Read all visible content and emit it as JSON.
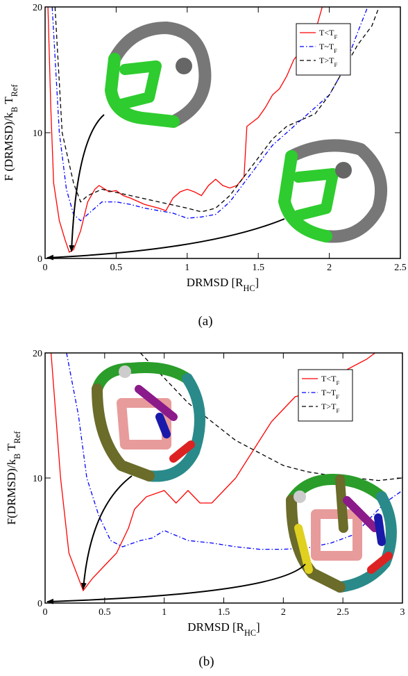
{
  "chart_data": [
    {
      "type": "line",
      "caption": "(a)",
      "xlabel": [
        {
          "text": "DRMSD [R"
        },
        {
          "text": "HC",
          "sub": true
        },
        {
          "text": "]"
        }
      ],
      "ylabel": [
        {
          "text": "F (DRMSD)/k"
        },
        {
          "text": "B",
          "sub": true
        },
        {
          "text": " T"
        },
        {
          "text": "Ref",
          "sub": true
        }
      ],
      "xlim": [
        0,
        2.5
      ],
      "xticks": [
        0,
        0.5,
        1,
        1.5,
        2,
        2.5
      ],
      "ylim": [
        0,
        20
      ],
      "yticks": [
        0,
        10,
        20
      ],
      "legend": "upper right",
      "series": [
        {
          "name": [
            {
              "text": "T<T"
            },
            {
              "text": "F",
              "sub": true
            }
          ],
          "color": "#ff0000",
          "dash": "solid",
          "x": [
            0.02,
            0.04,
            0.06,
            0.1,
            0.14,
            0.17,
            0.2,
            0.25,
            0.3,
            0.35,
            0.38,
            0.45,
            0.5,
            0.55,
            0.6,
            0.7,
            0.8,
            0.85,
            0.9,
            0.95,
            1.0,
            1.05,
            1.1,
            1.15,
            1.2,
            1.25,
            1.3,
            1.35,
            1.4,
            1.42,
            1.5,
            1.55,
            1.6,
            1.65,
            1.7,
            1.75,
            1.8,
            1.85,
            1.9,
            1.95
          ],
          "values": [
            20,
            12,
            6,
            3,
            1.5,
            0.5,
            0.7,
            2.2,
            4.5,
            5.5,
            5.8,
            5.3,
            5.4,
            5,
            4.8,
            4.3,
            4,
            3.8,
            4.8,
            5.3,
            5.5,
            5.3,
            5,
            5.8,
            6.3,
            5.8,
            5.6,
            5.8,
            6.5,
            10.5,
            11.2,
            12,
            13,
            13.5,
            14.5,
            15.8,
            16.5,
            17.2,
            18,
            20
          ]
        },
        {
          "name": [
            {
              "text": "T~T"
            },
            {
              "text": "F",
              "sub": true
            }
          ],
          "color": "#0000ff",
          "dash": "dashdot",
          "x": [
            0.05,
            0.08,
            0.1,
            0.15,
            0.2,
            0.25,
            0.3,
            0.4,
            0.5,
            0.6,
            0.7,
            0.8,
            0.9,
            1.0,
            1.1,
            1.2,
            1.3,
            1.4,
            1.5,
            1.6,
            1.7,
            1.8,
            1.9,
            2.0,
            2.1,
            2.2,
            2.27
          ],
          "values": [
            20,
            14,
            10,
            5.5,
            3.5,
            3,
            3.5,
            4.5,
            4.5,
            4.3,
            4,
            3.8,
            3.6,
            3.2,
            3.3,
            3.5,
            4.5,
            6,
            7.5,
            9,
            10,
            11,
            12,
            13,
            15,
            18,
            20
          ]
        },
        {
          "name": [
            {
              "text": "T>T"
            },
            {
              "text": "F",
              "sub": true
            }
          ],
          "color": "#000000",
          "dash": "dashed",
          "x": [
            0.07,
            0.12,
            0.2,
            0.25,
            0.3,
            0.4,
            0.6,
            0.8,
            1.0,
            1.1,
            1.2,
            1.3,
            1.4,
            1.5,
            1.6,
            1.7,
            1.8,
            1.9,
            2.0,
            2.1,
            2.2,
            2.3,
            2.35
          ],
          "values": [
            20,
            10,
            6,
            4.5,
            5,
            5.5,
            5,
            4.5,
            4,
            3.7,
            4,
            5,
            6.5,
            8,
            9.5,
            10.5,
            11,
            11.5,
            13,
            15,
            17,
            18.5,
            20
          ]
        }
      ]
    },
    {
      "type": "line",
      "caption": "(b)",
      "xlabel": [
        {
          "text": "DRMSD [R"
        },
        {
          "text": "HC",
          "sub": true
        },
        {
          "text": "]"
        }
      ],
      "ylabel": [
        {
          "text": "F(DRMSD)/k"
        },
        {
          "text": "B",
          "sub": true
        },
        {
          "text": " T"
        },
        {
          "text": "Ref",
          "sub": true
        }
      ],
      "xlim": [
        0,
        3
      ],
      "xticks": [
        0,
        0.5,
        1,
        1.5,
        2,
        2.5,
        3
      ],
      "ylim": [
        0,
        20
      ],
      "yticks": [
        0,
        10,
        20
      ],
      "legend": "upper right",
      "series": [
        {
          "name": [
            {
              "text": "T<T"
            },
            {
              "text": "F",
              "sub": true
            }
          ],
          "color": "#ff0000",
          "dash": "solid",
          "x": [
            0.05,
            0.13,
            0.2,
            0.32,
            0.4,
            0.5,
            0.6,
            0.7,
            0.75,
            0.85,
            1.0,
            1.1,
            1.2,
            1.3,
            1.4,
            1.5,
            1.6,
            1.7,
            1.8,
            1.9,
            2.0,
            2.1,
            2.3,
            2.5,
            2.7,
            2.77
          ],
          "values": [
            20,
            10,
            4,
            1,
            2,
            3,
            4,
            6,
            7.5,
            8.5,
            9,
            8,
            9,
            8,
            8,
            9,
            10,
            11.5,
            13,
            14.5,
            15.5,
            16.5,
            17,
            18.5,
            19.5,
            20
          ]
        },
        {
          "name": [
            {
              "text": "T~T"
            },
            {
              "text": "F",
              "sub": true
            }
          ],
          "color": "#0000ff",
          "dash": "dashdot",
          "x": [
            0.18,
            0.28,
            0.35,
            0.45,
            0.55,
            0.65,
            0.8,
            0.9,
            1.0,
            1.2,
            1.4,
            1.6,
            1.8,
            2.0,
            2.2,
            2.4,
            2.6,
            2.7,
            2.85,
            3.0
          ],
          "values": [
            20,
            15,
            10,
            7,
            5,
            4.5,
            5,
            5.2,
            5.8,
            5,
            4.8,
            4.5,
            4.3,
            4.3,
            4.4,
            4.8,
            5.5,
            6.5,
            8,
            9
          ]
        },
        {
          "name": [
            {
              "text": "T>T"
            },
            {
              "text": "F",
              "sub": true
            }
          ],
          "color": "#000000",
          "dash": "dashed",
          "x": [
            0.8,
            1.0,
            1.2,
            1.4,
            1.6,
            1.8,
            2.0,
            2.2,
            2.4,
            2.6,
            2.8,
            3.0
          ],
          "values": [
            20,
            18,
            16,
            14.5,
            13,
            12,
            11,
            10.5,
            10.2,
            10,
            9.8,
            10
          ]
        }
      ]
    }
  ]
}
